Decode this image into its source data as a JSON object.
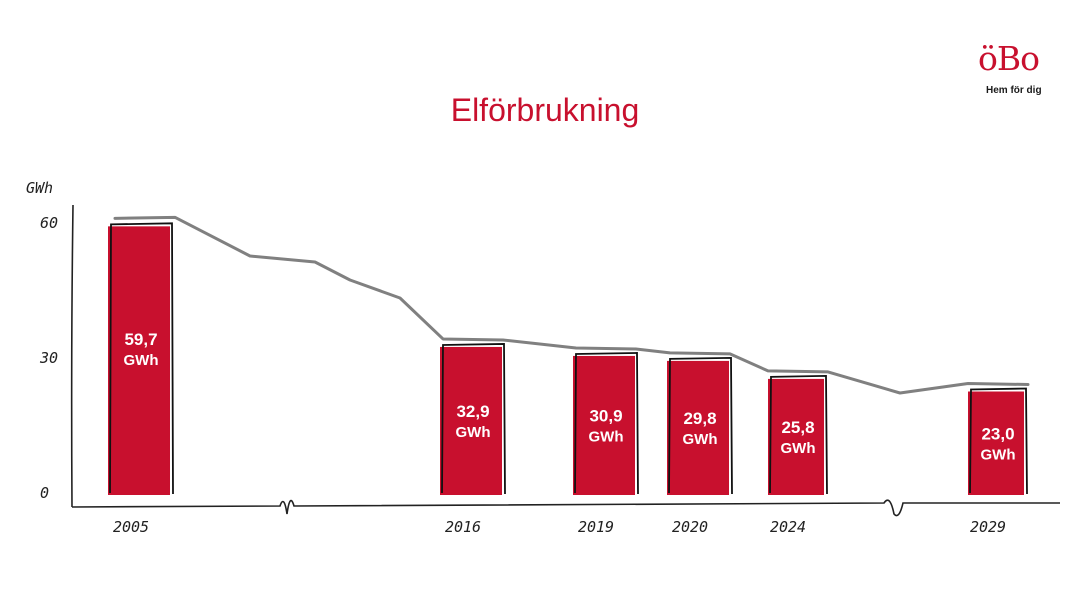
{
  "logo": {
    "mark": "öBo",
    "tagline": "Hem för dig"
  },
  "colors": {
    "accent": "#c8102e",
    "trend": "#808080",
    "axis": "#222222"
  },
  "chart_data": {
    "type": "bar",
    "title": "Elförbrukning",
    "ylabel": "GWh",
    "ylim": [
      0,
      60
    ],
    "yticks": [
      0,
      30,
      60
    ],
    "categories": [
      "2005",
      "2016",
      "2019",
      "2020",
      "2024",
      "2029"
    ],
    "values": [
      59.7,
      32.9,
      30.9,
      29.8,
      25.8,
      23.0
    ],
    "data_labels": [
      "59,7\nGWh",
      "32,9\nGWh",
      "30,9\nGWh",
      "29,8\nGWh",
      "25,8\nGWh",
      "23,0\nGWh"
    ],
    "axis_breaks": [
      "2005–2016",
      "2024–2029"
    ],
    "trend_line": true,
    "grid": false,
    "legend": "none"
  }
}
